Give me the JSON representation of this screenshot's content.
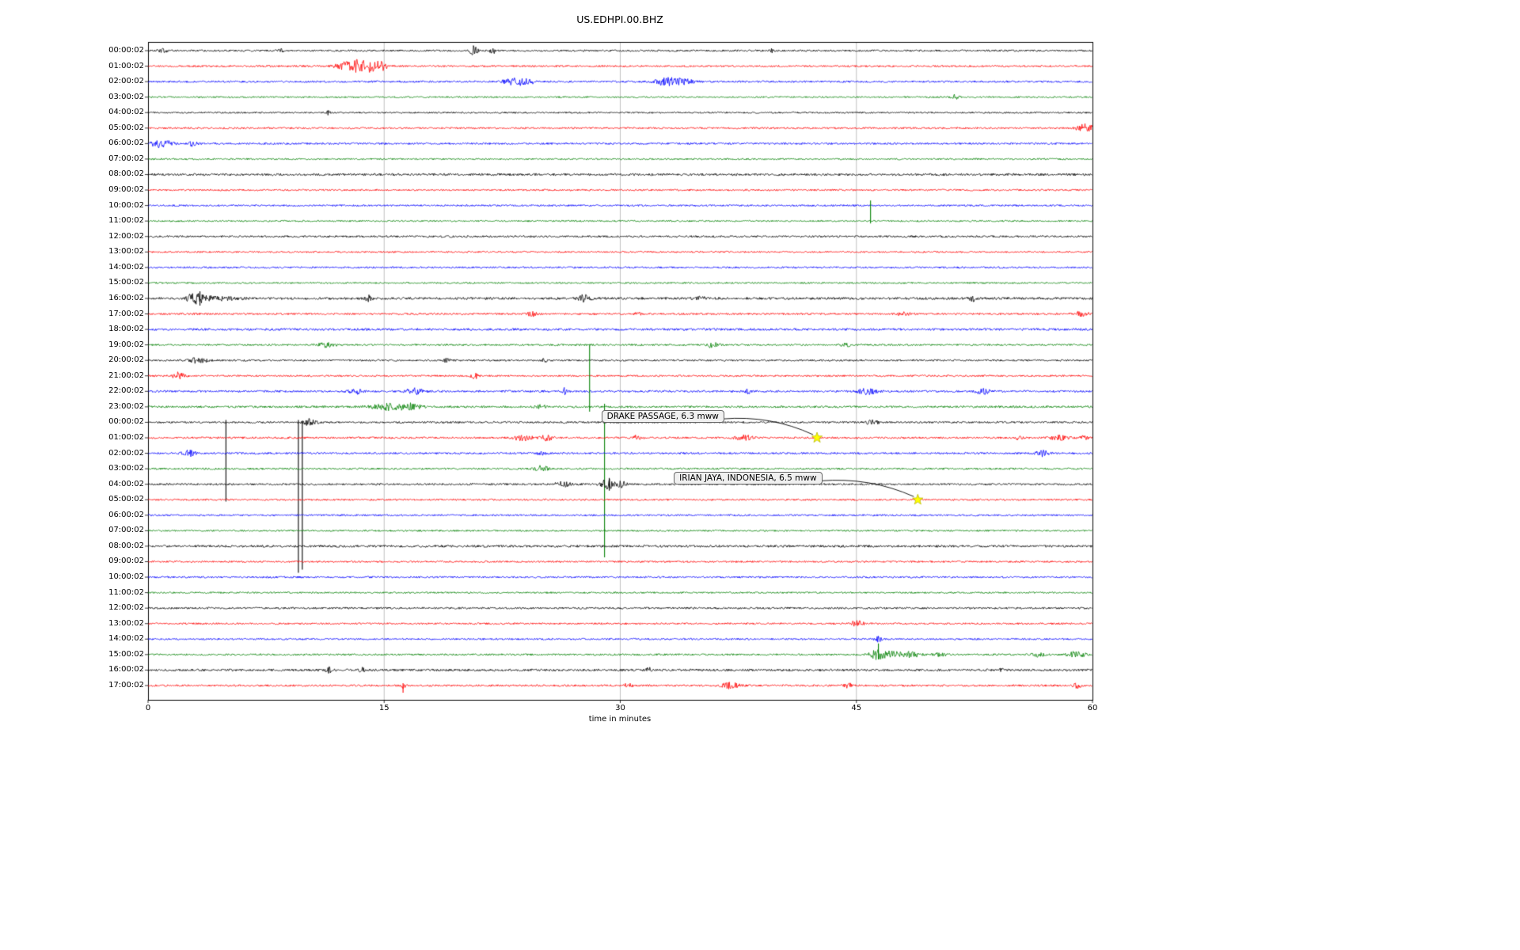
{
  "chart_data": {
    "type": "line",
    "subtype": "seismogram-dayplot",
    "title": "US.EDHPI.00.BHZ",
    "xlabel": "time in minutes",
    "x_ticks": [
      0,
      15,
      30,
      45,
      60
    ],
    "x_range": [
      0,
      60
    ],
    "grid_minutes": [
      15,
      30,
      45
    ],
    "legend_position": "none",
    "grid": true,
    "colors": {
      "black": "#000000",
      "red": "#ff0000",
      "blue": "#0000ff",
      "green": "#008000",
      "grid": "#b0b0b0",
      "star": "#ffff00",
      "annotation_bg": "#f0f0f0"
    },
    "rows": [
      {
        "label": "00:00:02",
        "color": "black",
        "noise": 1.1,
        "bursts": [
          {
            "m": 0.9,
            "a": 3,
            "w": 0.2
          },
          {
            "m": 8.5,
            "a": 2,
            "w": 0.15
          },
          {
            "m": 20.7,
            "a": 8,
            "w": 0.15
          },
          {
            "m": 21.9,
            "a": 4,
            "w": 0.15
          },
          {
            "m": 39.6,
            "a": 2.5,
            "w": 0.08
          }
        ],
        "spikes": []
      },
      {
        "label": "01:00:02",
        "color": "red",
        "noise": 1.1,
        "bursts": [
          {
            "m": 12.4,
            "a": 4,
            "w": 0.4
          },
          {
            "m": 13.3,
            "a": 6,
            "w": 0.5
          },
          {
            "m": 14.1,
            "a": 5,
            "w": 0.5
          },
          {
            "m": 14.8,
            "a": 4,
            "w": 0.3
          }
        ],
        "spikes": []
      },
      {
        "label": "02:00:02",
        "color": "blue",
        "noise": 1.2,
        "bursts": [
          {
            "m": 23.3,
            "a": 4,
            "w": 0.5
          },
          {
            "m": 24.1,
            "a": 3,
            "w": 0.3
          },
          {
            "m": 33,
            "a": 5,
            "w": 0.5
          },
          {
            "m": 34.1,
            "a": 3,
            "w": 0.4
          }
        ],
        "spikes": []
      },
      {
        "label": "03:00:02",
        "color": "green",
        "noise": 1.0,
        "bursts": [
          {
            "m": 51.3,
            "a": 4,
            "w": 0.15
          }
        ],
        "spikes": []
      },
      {
        "label": "04:00:02",
        "color": "black",
        "noise": 1.0,
        "bursts": [
          {
            "m": 11.4,
            "a": 2.5,
            "w": 0.1
          }
        ],
        "spikes": []
      },
      {
        "label": "05:00:02",
        "color": "red",
        "noise": 1.1,
        "bursts": [
          {
            "m": 59.4,
            "a": 4,
            "w": 0.3
          },
          {
            "m": 59.8,
            "a": 3,
            "w": 0.2
          }
        ],
        "spikes": []
      },
      {
        "label": "06:00:02",
        "color": "blue",
        "noise": 1.2,
        "bursts": [
          {
            "m": 0.6,
            "a": 4,
            "w": 0.3
          },
          {
            "m": 1.2,
            "a": 3,
            "w": 0.3
          },
          {
            "m": 2.9,
            "a": 3.5,
            "w": 0.2
          }
        ],
        "spikes": []
      },
      {
        "label": "07:00:02",
        "color": "green",
        "noise": 1.0,
        "bursts": [],
        "spikes": []
      },
      {
        "label": "08:00:02",
        "color": "black",
        "noise": 1.4,
        "bursts": [],
        "spikes": []
      },
      {
        "label": "09:00:02",
        "color": "red",
        "noise": 1.1,
        "bursts": [],
        "spikes": []
      },
      {
        "label": "10:00:02",
        "color": "blue",
        "noise": 1.1,
        "bursts": [],
        "spikes": []
      },
      {
        "label": "11:00:02",
        "color": "green",
        "noise": 1.0,
        "bursts": [],
        "spikes": [
          {
            "m": 45.9,
            "up": 26,
            "down": 3
          }
        ]
      },
      {
        "label": "12:00:02",
        "color": "black",
        "noise": 1.2,
        "bursts": [],
        "spikes": []
      },
      {
        "label": "13:00:02",
        "color": "red",
        "noise": 1.0,
        "bursts": [],
        "spikes": []
      },
      {
        "label": "14:00:02",
        "color": "blue",
        "noise": 1.1,
        "bursts": [],
        "spikes": []
      },
      {
        "label": "15:00:02",
        "color": "green",
        "noise": 1.0,
        "bursts": [],
        "spikes": []
      },
      {
        "label": "16:00:02",
        "color": "black",
        "noise": 1.5,
        "bursts": [
          {
            "m": 2.9,
            "a": 6,
            "w": 0.3
          },
          {
            "m": 3.6,
            "a": 4,
            "w": 0.3
          },
          {
            "m": 5,
            "a": 2.5,
            "w": 0.6
          },
          {
            "m": 14,
            "a": 3.5,
            "w": 0.15
          },
          {
            "m": 27.7,
            "a": 4,
            "w": 0.3
          },
          {
            "m": 35.2,
            "a": 2.5,
            "w": 0.2
          },
          {
            "m": 52.4,
            "a": 3,
            "w": 0.15
          }
        ],
        "spikes": [
          {
            "m": 3.3,
            "up": 9,
            "down": 9
          }
        ]
      },
      {
        "label": "17:00:02",
        "color": "red",
        "noise": 1.2,
        "bursts": [
          {
            "m": 24.4,
            "a": 3,
            "w": 0.2
          },
          {
            "m": 31.2,
            "a": 3,
            "w": 0.15
          },
          {
            "m": 48,
            "a": 2,
            "w": 0.3
          },
          {
            "m": 59.3,
            "a": 3,
            "w": 0.3
          }
        ],
        "spikes": []
      },
      {
        "label": "18:00:02",
        "color": "blue",
        "noise": 1.4,
        "bursts": [],
        "spikes": []
      },
      {
        "label": "19:00:02",
        "color": "green",
        "noise": 1.1,
        "bursts": [
          {
            "m": 11.3,
            "a": 2.5,
            "w": 0.4
          },
          {
            "m": 35.8,
            "a": 3,
            "w": 0.3
          },
          {
            "m": 44.3,
            "a": 2.5,
            "w": 0.2
          }
        ],
        "spikes": []
      },
      {
        "label": "20:00:02",
        "color": "black",
        "noise": 1.1,
        "bursts": [
          {
            "m": 3.2,
            "a": 3.5,
            "w": 0.4
          },
          {
            "m": 19,
            "a": 2.5,
            "w": 0.15
          },
          {
            "m": 25.2,
            "a": 3,
            "w": 0.1
          }
        ],
        "spikes": []
      },
      {
        "label": "21:00:02",
        "color": "red",
        "noise": 1.1,
        "bursts": [
          {
            "m": 1.9,
            "a": 4,
            "w": 0.3
          },
          {
            "m": 20.8,
            "a": 3.5,
            "w": 0.2
          }
        ],
        "spikes": []
      },
      {
        "label": "22:00:02",
        "color": "blue",
        "noise": 1.3,
        "bursts": [
          {
            "m": 13.2,
            "a": 3,
            "w": 0.3
          },
          {
            "m": 16.9,
            "a": 3.5,
            "w": 0.4
          },
          {
            "m": 26.4,
            "a": 5,
            "w": 0.15
          },
          {
            "m": 38.2,
            "a": 3,
            "w": 0.15
          },
          {
            "m": 45.7,
            "a": 3.5,
            "w": 0.4
          },
          {
            "m": 53,
            "a": 3.5,
            "w": 0.3
          }
        ],
        "spikes": []
      },
      {
        "label": "23:00:02",
        "color": "green",
        "noise": 1.3,
        "bursts": [
          {
            "m": 15.4,
            "a": 4,
            "w": 0.8
          },
          {
            "m": 16.8,
            "a": 3,
            "w": 0.4
          },
          {
            "m": 25,
            "a": 2.5,
            "w": 0.2
          }
        ],
        "spikes": [
          {
            "m": 28.05,
            "up": 78,
            "down": 6
          },
          {
            "m": 29.0,
            "up": 4,
            "down": 190
          }
        ]
      },
      {
        "label": "00:00:02",
        "color": "black",
        "noise": 1.2,
        "bursts": [
          {
            "m": 10.3,
            "a": 4,
            "w": 0.3
          },
          {
            "m": 46,
            "a": 2.5,
            "w": 0.3
          }
        ],
        "spikes": [
          {
            "m": 4.95,
            "up": 3,
            "down": 100
          },
          {
            "m": 9.55,
            "up": 3,
            "down": 190
          },
          {
            "m": 9.8,
            "up": 2,
            "down": 186
          }
        ]
      },
      {
        "label": "01:00:02",
        "color": "red",
        "noise": 1.2,
        "bursts": [
          {
            "m": 23.8,
            "a": 3.5,
            "w": 0.4
          },
          {
            "m": 25.3,
            "a": 3,
            "w": 0.3
          },
          {
            "m": 31,
            "a": 2.5,
            "w": 0.2
          },
          {
            "m": 37.9,
            "a": 3,
            "w": 0.4
          },
          {
            "m": 55.3,
            "a": 2.5,
            "w": 0.2
          },
          {
            "m": 58,
            "a": 3.5,
            "w": 0.4
          },
          {
            "m": 59.5,
            "a": 3,
            "w": 0.2
          }
        ],
        "spikes": []
      },
      {
        "label": "02:00:02",
        "color": "blue",
        "noise": 1.2,
        "bursts": [
          {
            "m": 2.6,
            "a": 3.5,
            "w": 0.3
          },
          {
            "m": 25,
            "a": 2.5,
            "w": 0.2
          },
          {
            "m": 56.8,
            "a": 3.5,
            "w": 0.25
          }
        ],
        "spikes": []
      },
      {
        "label": "03:00:02",
        "color": "green",
        "noise": 1.1,
        "bursts": [
          {
            "m": 25,
            "a": 3.5,
            "w": 0.3
          }
        ],
        "spikes": []
      },
      {
        "label": "04:00:02",
        "color": "black",
        "noise": 1.2,
        "bursts": [
          {
            "m": 26.4,
            "a": 3,
            "w": 0.4
          },
          {
            "m": 29.2,
            "a": 6,
            "w": 0.3
          },
          {
            "m": 30.1,
            "a": 4,
            "w": 0.2
          }
        ],
        "spikes": [
          {
            "m": 29.3,
            "up": 8,
            "down": 8
          }
        ]
      },
      {
        "label": "05:00:02",
        "color": "red",
        "noise": 1.1,
        "bursts": [],
        "spikes": []
      },
      {
        "label": "06:00:02",
        "color": "blue",
        "noise": 1.1,
        "bursts": [],
        "spikes": []
      },
      {
        "label": "07:00:02",
        "color": "green",
        "noise": 1.0,
        "bursts": [],
        "spikes": []
      },
      {
        "label": "08:00:02",
        "color": "black",
        "noise": 1.4,
        "bursts": [],
        "spikes": []
      },
      {
        "label": "09:00:02",
        "color": "red",
        "noise": 1.1,
        "bursts": [],
        "spikes": []
      },
      {
        "label": "10:00:02",
        "color": "blue",
        "noise": 1.1,
        "bursts": [],
        "spikes": []
      },
      {
        "label": "11:00:02",
        "color": "green",
        "noise": 1.0,
        "bursts": [],
        "spikes": []
      },
      {
        "label": "12:00:02",
        "color": "black",
        "noise": 1.2,
        "bursts": [],
        "spikes": []
      },
      {
        "label": "13:00:02",
        "color": "red",
        "noise": 1.1,
        "bursts": [
          {
            "m": 45,
            "a": 3.5,
            "w": 0.3
          }
        ],
        "spikes": []
      },
      {
        "label": "14:00:02",
        "color": "blue",
        "noise": 1.1,
        "bursts": [
          {
            "m": 46.4,
            "a": 3,
            "w": 0.15
          }
        ],
        "spikes": []
      },
      {
        "label": "15:00:02",
        "color": "green",
        "noise": 1.1,
        "bursts": [
          {
            "m": 46.3,
            "a": 6,
            "w": 0.3
          },
          {
            "m": 47.3,
            "a": 4,
            "w": 0.5
          },
          {
            "m": 48.5,
            "a": 3,
            "w": 0.4
          },
          {
            "m": 50.3,
            "a": 2.5,
            "w": 0.3
          },
          {
            "m": 56.5,
            "a": 3,
            "w": 0.3
          },
          {
            "m": 59,
            "a": 4,
            "w": 0.4
          }
        ],
        "spikes": [
          {
            "m": 46.4,
            "up": 14,
            "down": 6
          }
        ]
      },
      {
        "label": "16:00:02",
        "color": "black",
        "noise": 1.4,
        "bursts": [
          {
            "m": 11.5,
            "a": 3,
            "w": 0.15
          },
          {
            "m": 13.6,
            "a": 2.5,
            "w": 0.15
          },
          {
            "m": 31.8,
            "a": 3,
            "w": 0.1
          },
          {
            "m": 54.2,
            "a": 2.5,
            "w": 0.1
          }
        ],
        "spikes": []
      },
      {
        "label": "17:00:02",
        "color": "red",
        "noise": 1.2,
        "bursts": [
          {
            "m": 16.2,
            "a": 4,
            "w": 0.1
          },
          {
            "m": 30.5,
            "a": 3,
            "w": 0.15
          },
          {
            "m": 37,
            "a": 3.5,
            "w": 0.4
          },
          {
            "m": 44.5,
            "a": 2.5,
            "w": 0.2
          },
          {
            "m": 59,
            "a": 3,
            "w": 0.2
          }
        ],
        "spikes": [
          {
            "m": 16.2,
            "up": 3,
            "down": 9
          }
        ]
      }
    ],
    "annotations": [
      {
        "text": "DRAKE PASSAGE, 6.3 mww",
        "box_minute": 28.8,
        "box_row": 23.68,
        "star_minute": 42.5,
        "star_row": 25
      },
      {
        "text": "IRIAN JAYA, INDONESIA, 6.5 mww",
        "box_minute": 33.4,
        "box_row": 27.68,
        "star_minute": 48.9,
        "star_row": 29
      }
    ]
  }
}
